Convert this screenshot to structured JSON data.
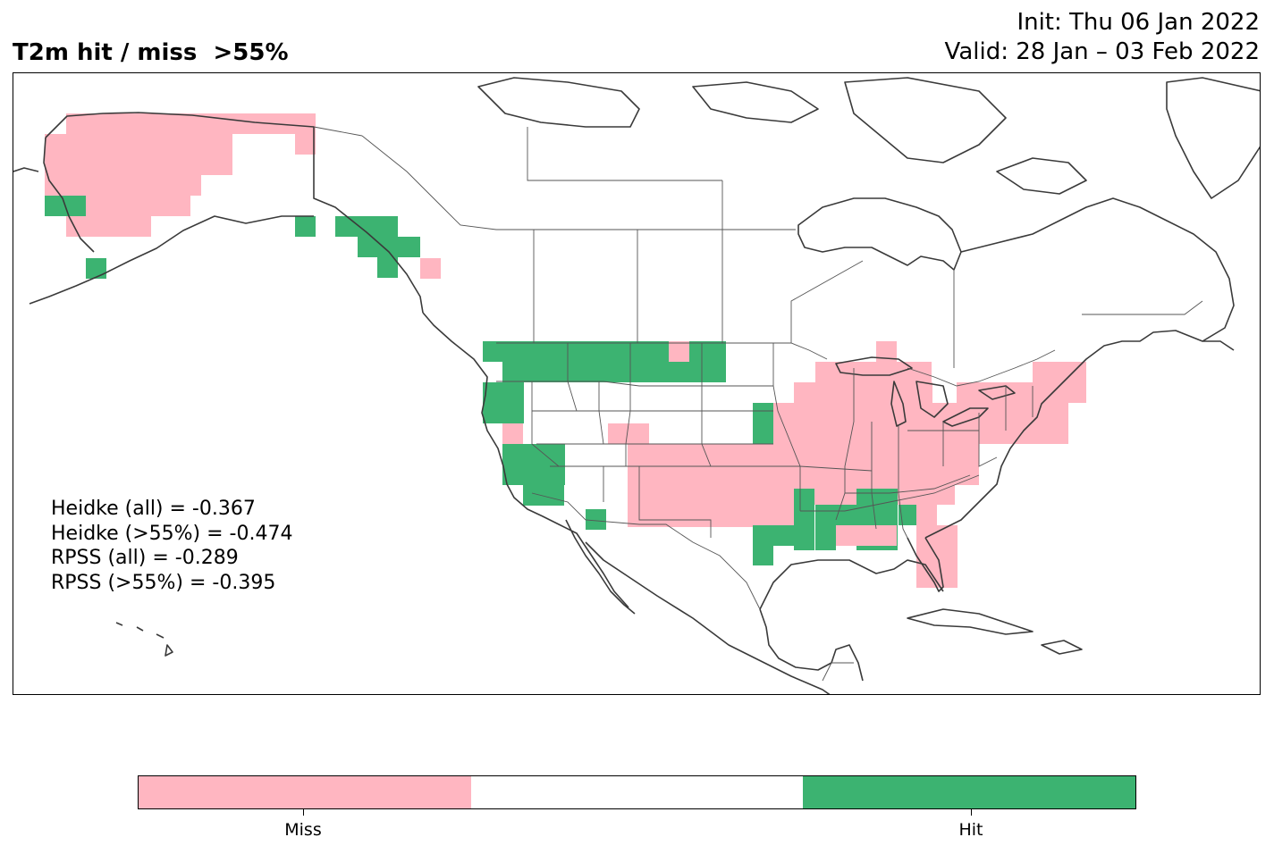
{
  "header": {
    "title": "T2m hit / miss  >55%",
    "init": "Init: Thu 06 Jan 2022",
    "valid": "Valid: 28 Jan – 03 Feb 2022"
  },
  "stats": {
    "heidke_all": "Heidke (all) = -0.367",
    "heidke_55": "Heidke (>55%) = -0.474",
    "rpss_all": "RPSS (all) = -0.289",
    "rpss_55": "RPSS (>55%) = -0.395"
  },
  "legend": {
    "miss_label": "Miss",
    "hit_label": "Hit",
    "miss_color": "#ffb6c1",
    "neutral_color": "#ffffff",
    "hit_color": "#3cb371"
  },
  "map": {
    "region": "North America",
    "projection": "PlateCarree",
    "cell_categories": [
      "miss",
      "hit"
    ]
  }
}
